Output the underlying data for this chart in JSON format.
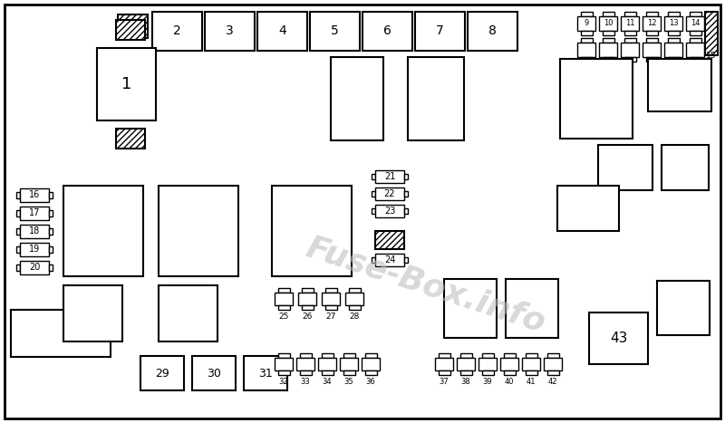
{
  "bg_color": "#ffffff",
  "watermark_text": "Fuse-Box.info",
  "fig_width": 8.0,
  "fig_height": 4.67,
  "dpi": 100
}
